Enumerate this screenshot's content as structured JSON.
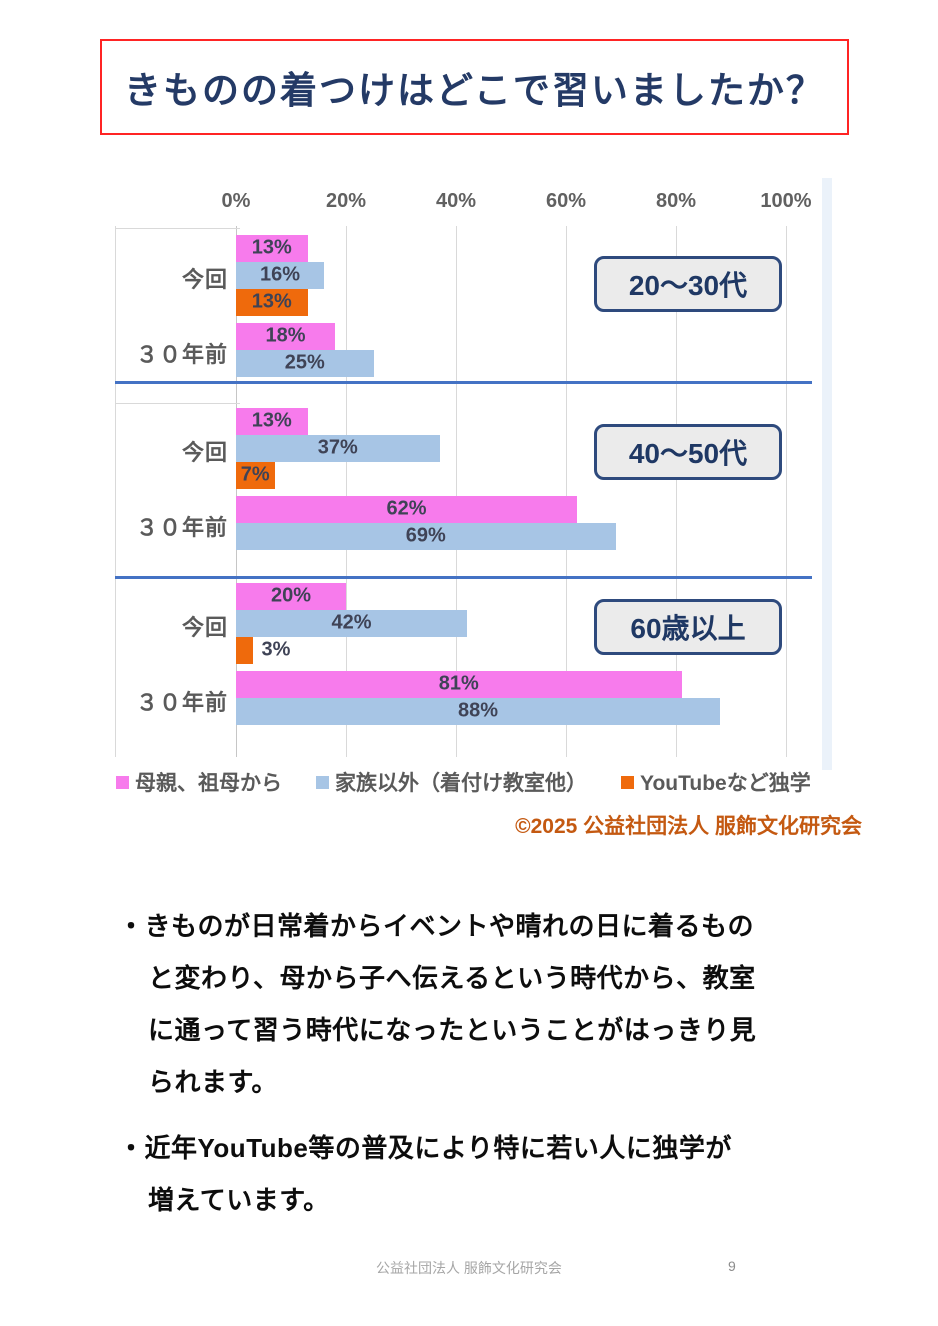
{
  "page": {
    "title": "きものの着つけはどこで習いましたか？",
    "footer": {
      "org": "公益社団法人 服飾文化研究会",
      "page_number": "9"
    }
  },
  "chart_data": {
    "type": "bar",
    "orientation": "horizontal",
    "title": "きものの着つけはどこで習いましたか？",
    "xlabel": "",
    "ylabel": "",
    "xlim": [
      0,
      100
    ],
    "grid": true,
    "legend_position": "bottom",
    "x_axis": {
      "ticks": [
        "0%",
        "20%",
        "40%",
        "60%",
        "80%",
        "100%"
      ],
      "tick_values": [
        0,
        20,
        40,
        60,
        80,
        100
      ]
    },
    "series": [
      {
        "id": "mother-grandmother",
        "name": "母親、祖母から",
        "color": "#f77bec"
      },
      {
        "id": "outside-family",
        "name": "家族以外（着付け教室他）",
        "color": "#a7c5e5"
      },
      {
        "id": "youtube-selftaught",
        "name": "YouTubeなど独学",
        "color": "#ef6a0c"
      }
    ],
    "groups": [
      {
        "id": "age-20-30",
        "label": "20～30代",
        "rows": [
          {
            "id": "current",
            "label": "今回",
            "values": [
              13,
              16,
              13
            ]
          },
          {
            "id": "30-years-ago",
            "label": "３０年前",
            "values": [
              18,
              25,
              null
            ]
          }
        ]
      },
      {
        "id": "age-40-50",
        "label": "40～50代",
        "rows": [
          {
            "id": "current",
            "label": "今回",
            "values": [
              13,
              37,
              7
            ]
          },
          {
            "id": "30-years-ago",
            "label": "３０年前",
            "values": [
              62,
              69,
              null
            ]
          }
        ]
      },
      {
        "id": "age-60plus",
        "label": "60歳以上",
        "rows": [
          {
            "id": "current",
            "label": "今回",
            "values": [
              20,
              42,
              3
            ]
          },
          {
            "id": "30-years-ago",
            "label": "３０年前",
            "values": [
              81,
              88,
              null
            ]
          }
        ]
      }
    ],
    "value_suffix": "%",
    "copyright": "©2025 公益社団法人 服飾文化研究会"
  },
  "notes": {
    "marker": "・",
    "bullets": [
      "きものが日常着からイベントや晴れの日に着るものと変わり、母から子へ伝えるという時代から、教室に通って習う時代になったということがはっきり見られます。",
      "近年YouTube等の普及により特に若い人に独学が増えています。"
    ]
  },
  "colors": {
    "title_text": "#243a66",
    "title_border": "#ff2424",
    "divider": "#4472c4",
    "badge_border": "#2e4a7d",
    "badge_bg": "#ebebeb",
    "badge_text": "#1f3864",
    "bar_label": "#3f4356",
    "axis_text": "#616161",
    "copyright": "#c45911",
    "footer": "#a6a6a6"
  }
}
